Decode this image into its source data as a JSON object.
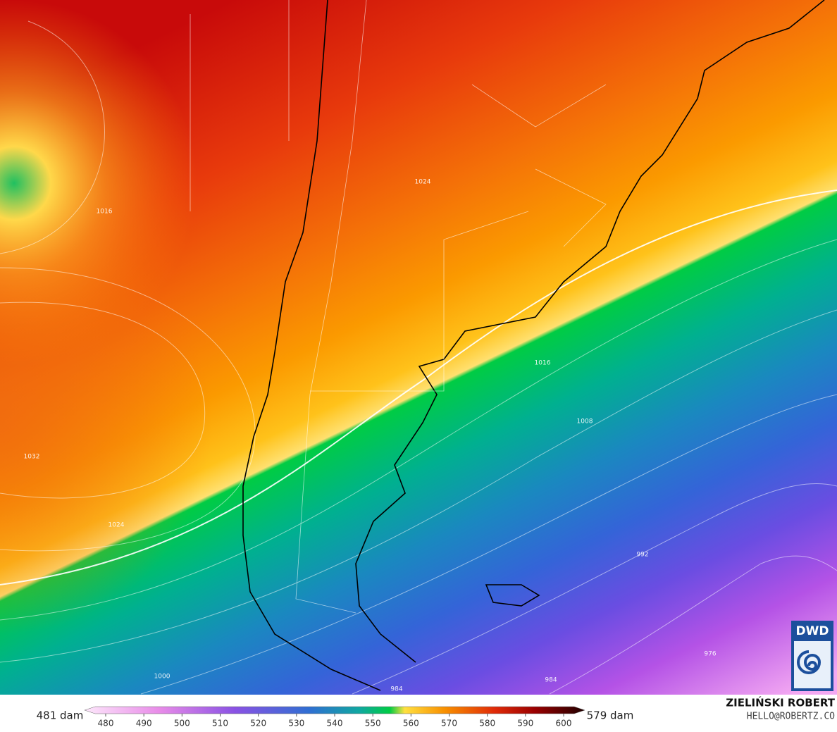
{
  "contour_labels": [
    "1024",
    "1016",
    "1016",
    "1008",
    "992",
    "984",
    "984",
    "1000",
    "1032",
    "1024",
    "976"
  ],
  "legend": {
    "min_label": "481 dam",
    "max_label": "579 dam",
    "ticks": [
      480,
      490,
      500,
      510,
      520,
      530,
      540,
      550,
      560,
      570,
      580,
      590,
      600
    ]
  },
  "credits": {
    "author": "ZIELIŃSKI ROBERT",
    "contact": "HELLO@ROBERTZ.CO"
  },
  "logo": "DWD"
}
